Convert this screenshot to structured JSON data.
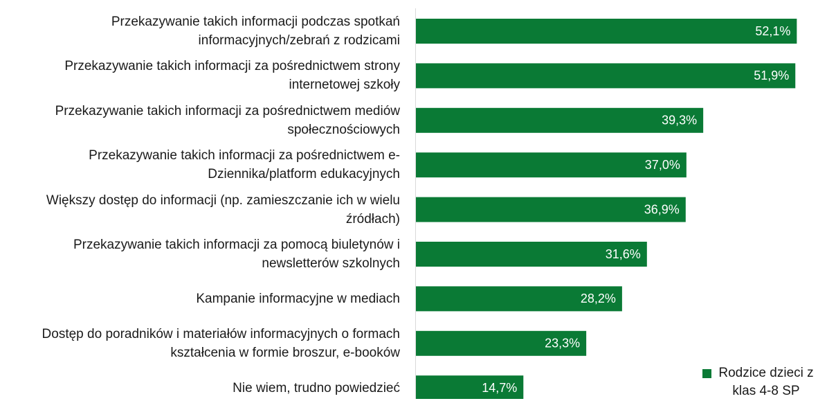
{
  "chart_data": {
    "type": "bar",
    "orientation": "horizontal",
    "categories": [
      "Przekazywanie takich informacji podczas spotkań informacyjnych/zebrań z rodzicami",
      "Przekazywanie takich informacji za pośrednictwem strony internetowej szkoły",
      "Przekazywanie takich informacji za pośrednictwem mediów społecznościowych",
      "Przekazywanie takich informacji za pośrednictwem e-Dziennika/platform edukacyjnych",
      "Większy dostęp do informacji (np. zamieszczanie ich w wielu źródłach)",
      "Przekazywanie takich informacji za pomocą biuletynów i newsletterów szkolnych",
      "Kampanie informacyjne w mediach",
      "Dostęp do poradników i materiałów informacyjnych o formach kształcenia w formie broszur, e-booków",
      "Nie wiem, trudno powiedzieć"
    ],
    "series": [
      {
        "name": "Rodzice dzieci z klas 4-8 SP",
        "color": "#0a7a35",
        "values": [
          52.1,
          51.9,
          39.3,
          37.0,
          36.9,
          31.6,
          28.2,
          23.3,
          14.7
        ],
        "value_labels": [
          "52,1%",
          "51,9%",
          "39,3%",
          "37,0%",
          "36,9%",
          "31,6%",
          "28,2%",
          "23,3%",
          "14,7%"
        ]
      }
    ],
    "xlim": [
      0,
      55
    ],
    "legend": "bottom-right"
  }
}
